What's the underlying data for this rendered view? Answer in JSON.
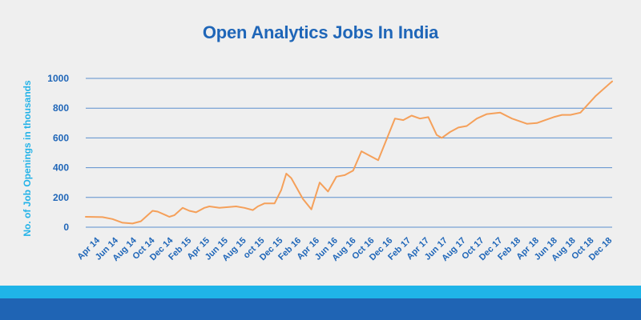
{
  "chart_data": {
    "type": "line",
    "title": "Open Analytics Jobs In India",
    "ylabel": "No. of Job Openings in thousands",
    "xlabel": "",
    "ylim": [
      0,
      1000
    ],
    "yticks": [
      0,
      200,
      400,
      600,
      800,
      1000
    ],
    "grid": true,
    "xtick_labels": [
      "Apr 14",
      "Jun 14",
      "Aug 14",
      "Oct 14",
      "Dec 14",
      "Feb 15",
      "Apr 15",
      "Jun 15",
      "Aug 15",
      "oct 15",
      "Dec 15",
      "Feb 16",
      "Apr 16",
      "Jun 16",
      "Aug 16",
      "Oct 16",
      "Dec 16",
      "Feb 17",
      "Apr 17",
      "Jun 17",
      "Aug 17",
      "Oct 17",
      "Dec 17",
      "Feb 18",
      "Apr 18",
      "Jun 18",
      "Aug 18",
      "Oct 18",
      "Dec 18"
    ],
    "series": [
      {
        "color": "#f5a05a",
        "points": [
          [
            0,
            70
          ],
          [
            1,
            68
          ],
          [
            1.6,
            55
          ],
          [
            2.2,
            30
          ],
          [
            2.8,
            25
          ],
          [
            3.3,
            40
          ],
          [
            4,
            110
          ],
          [
            4.3,
            105
          ],
          [
            4.8,
            80
          ],
          [
            5,
            70
          ],
          [
            5.3,
            80
          ],
          [
            5.8,
            130
          ],
          [
            6.2,
            110
          ],
          [
            6.6,
            100
          ],
          [
            7.1,
            130
          ],
          [
            7.4,
            140
          ],
          [
            8,
            130
          ],
          [
            8.5,
            135
          ],
          [
            9,
            140
          ],
          [
            9.5,
            130
          ],
          [
            10,
            115
          ],
          [
            10.3,
            140
          ],
          [
            10.7,
            160
          ],
          [
            11.3,
            160
          ],
          [
            11.7,
            250
          ],
          [
            12,
            360
          ],
          [
            12.3,
            330
          ],
          [
            13,
            190
          ],
          [
            13.5,
            120
          ],
          [
            14,
            300
          ],
          [
            14.5,
            240
          ],
          [
            15,
            340
          ],
          [
            15.5,
            350
          ],
          [
            16,
            380
          ],
          [
            16.5,
            510
          ],
          [
            17,
            480
          ],
          [
            17.5,
            450
          ],
          [
            18.5,
            730
          ],
          [
            19,
            720
          ],
          [
            19.5,
            750
          ],
          [
            20,
            730
          ],
          [
            20.5,
            740
          ],
          [
            21,
            620
          ],
          [
            21.3,
            600
          ],
          [
            21.8,
            640
          ],
          [
            22.3,
            670
          ],
          [
            22.8,
            680
          ],
          [
            23.4,
            730
          ],
          [
            24,
            760
          ],
          [
            24.8,
            770
          ],
          [
            25.5,
            730
          ],
          [
            26.4,
            695
          ],
          [
            27,
            700
          ],
          [
            27.5,
            720
          ],
          [
            28,
            740
          ],
          [
            28.5,
            755
          ],
          [
            29,
            755
          ],
          [
            29.6,
            770
          ],
          [
            30.5,
            880
          ],
          [
            31.5,
            980
          ]
        ]
      }
    ]
  },
  "colors": {
    "title": "#1f66b8",
    "ylabel": "#24b3e8",
    "tick": "#1f66b8",
    "grid": "#5b8fce",
    "line": "#f5a05a",
    "band_light": "#1fb4e8",
    "band_dark": "#1f64b4"
  }
}
